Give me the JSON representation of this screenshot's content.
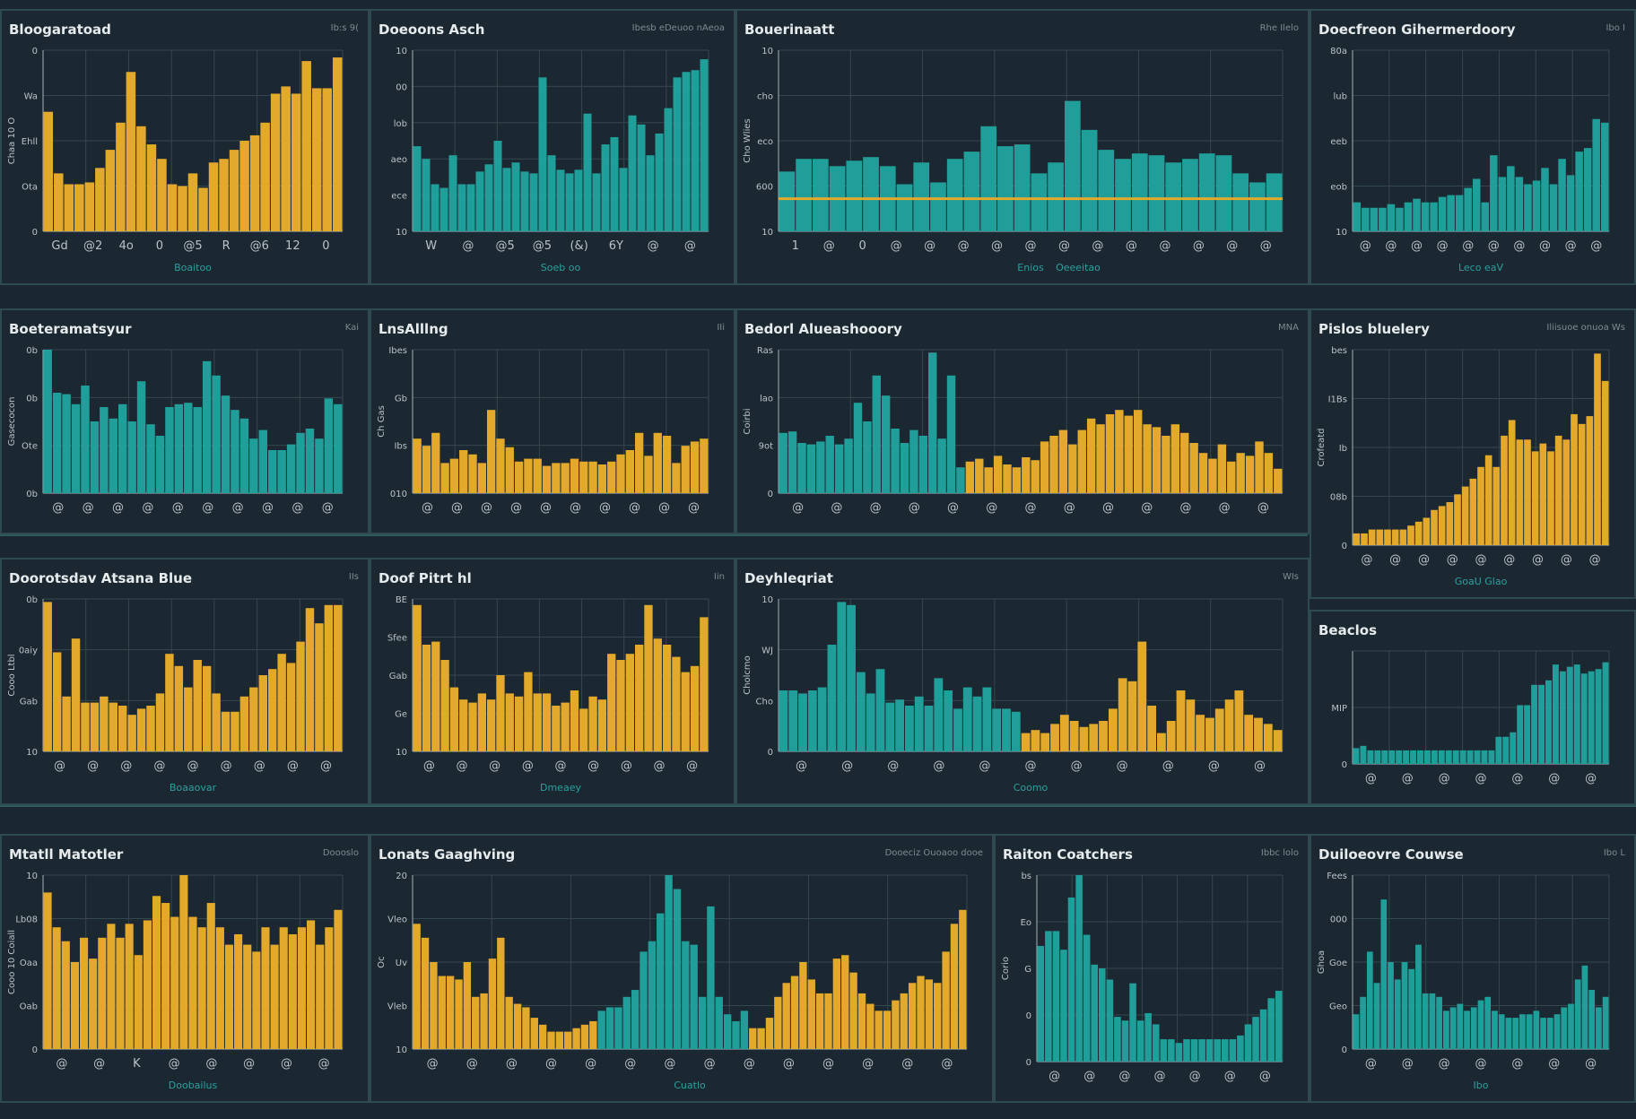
{
  "colors": {
    "gold": "#e3a92b",
    "teal": "#1f9e9a",
    "background": "#1c2831",
    "grid": "#33474e",
    "axis_title": "#2aa0a0"
  },
  "chart_data": [
    {
      "id": "p1",
      "title": "Bloogaratoad",
      "tag": "Ib:s 9(",
      "type": "bar",
      "color": "gold",
      "xticks": [
        "Gd",
        "@2",
        "4o",
        "0",
        "@5",
        "R",
        "@6",
        "12",
        "0"
      ],
      "yticks": [
        "0",
        "Wa",
        "Ehll",
        "Ota",
        "0"
      ],
      "xlabel": "Boaitoo",
      "ylabel": "Chaa 10 O",
      "ylim": [
        0,
        100
      ],
      "values": [
        66,
        32,
        26,
        26,
        27,
        35,
        45,
        60,
        88,
        58,
        48,
        40,
        26,
        25,
        32,
        24,
        38,
        40,
        45,
        50,
        53,
        60,
        76,
        80,
        76,
        94,
        79,
        79,
        96
      ]
    },
    {
      "id": "p2",
      "title": "Doeoons Asch",
      "tag": "Ibesb eDeuoo nAeoa",
      "type": "bar",
      "color": "teal",
      "xticks": [
        "W",
        "@",
        "@5",
        "@5",
        "(&)",
        "6Y",
        "@",
        "@"
      ],
      "yticks": [
        "10",
        "00",
        "lob",
        "aeo",
        "ece",
        "10"
      ],
      "xlabel": "Soeb oo",
      "ylim": [
        0,
        100
      ],
      "values": [
        47,
        40,
        26,
        24,
        42,
        26,
        26,
        33,
        37,
        50,
        35,
        38,
        33,
        32,
        85,
        42,
        34,
        32,
        34,
        65,
        32,
        48,
        52,
        35,
        64,
        59,
        42,
        54,
        68,
        85,
        88,
        89,
        95
      ]
    },
    {
      "id": "p3",
      "title": "Bouerinaatt",
      "tag": "Rhe Ilelo",
      "type": "bar",
      "color": "teal",
      "xticks": [
        "1",
        "@",
        "0",
        "@",
        "@",
        "@",
        "@",
        "@",
        "@",
        "@",
        "@",
        "@",
        "@",
        "@",
        "@"
      ],
      "yticks": [
        "10",
        "cho",
        "eco",
        "600",
        "10"
      ],
      "xlabel": "Enios",
      "xlabel2": "Oeeeitao",
      "ylabel": "Cho Wlies",
      "ylim": [
        0,
        100
      ],
      "line_value": 18,
      "values": [
        33,
        40,
        40,
        36,
        39,
        41,
        36,
        26,
        38,
        27,
        40,
        44,
        58,
        47,
        48,
        32,
        38,
        72,
        56,
        45,
        40,
        43,
        42,
        38,
        40,
        43,
        42,
        32,
        27,
        32
      ]
    },
    {
      "id": "p4",
      "title": "Doecfreon Gihermerdoory",
      "tag": "Ibo I",
      "type": "bar",
      "color": "teal",
      "xticks": [
        "@",
        "@",
        "@",
        "@",
        "@",
        "@",
        "@",
        "@",
        "@",
        "@"
      ],
      "yticks": [
        "80a",
        "lub",
        "eeb",
        "eob",
        "10"
      ],
      "xlabel": "Leco eaV",
      "ylim": [
        0,
        100
      ],
      "values": [
        16,
        13,
        13,
        13,
        15,
        13,
        16,
        18,
        16,
        16,
        19,
        20,
        20,
        24,
        29,
        16,
        42,
        30,
        36,
        30,
        26,
        28,
        35,
        26,
        40,
        31,
        44,
        46,
        62,
        60
      ]
    },
    {
      "id": "p5",
      "title": "Boeteramatsyur",
      "tag": "Kai",
      "type": "bar",
      "color": "teal",
      "xticks": [
        "@",
        "@",
        "@",
        "@",
        "@",
        "@",
        "@",
        "@",
        "@",
        "@"
      ],
      "yticks": [
        "0b",
        "0b",
        "Ote",
        "0b"
      ],
      "ylabel": "Gasecocon",
      "ylim": [
        0,
        100
      ],
      "values": [
        100,
        70,
        69,
        62,
        75,
        50,
        60,
        52,
        62,
        50,
        78,
        48,
        40,
        60,
        62,
        63,
        60,
        92,
        82,
        68,
        58,
        52,
        38,
        44,
        30,
        30,
        34,
        42,
        45,
        38,
        66,
        62
      ]
    },
    {
      "id": "p6",
      "title": "LnsAlllng",
      "tag": "IIi",
      "type": "bar",
      "color": "gold",
      "xticks": [
        "@",
        "@",
        "@",
        "@",
        "@",
        "@",
        "@",
        "@",
        "@",
        "@"
      ],
      "yticks": [
        "Ibes",
        "Gb",
        "Ibs",
        "010"
      ],
      "ylabel": "Ch Gas",
      "ylim": [
        0,
        100
      ],
      "values": [
        38,
        33,
        42,
        21,
        24,
        30,
        27,
        21,
        58,
        38,
        32,
        22,
        24,
        24,
        19,
        21,
        21,
        24,
        22,
        22,
        20,
        22,
        27,
        30,
        42,
        26,
        42,
        40,
        21,
        33,
        36,
        38
      ]
    },
    {
      "id": "p7",
      "title": "Bedorl Alueashooory",
      "tag": "MNA",
      "type": "bar",
      "color": "mixed",
      "xticks": [
        "@",
        "@",
        "@",
        "@",
        "@",
        "@",
        "@",
        "@",
        "@",
        "@",
        "@",
        "@",
        "@"
      ],
      "yticks": [
        "Ras",
        "lao",
        "9ot",
        "0"
      ],
      "ylabel": "Coirbi",
      "ylim": [
        0,
        100
      ],
      "values": [
        42,
        43,
        35,
        34,
        36,
        40,
        34,
        38,
        63,
        50,
        82,
        68,
        45,
        35,
        44,
        40,
        98,
        38,
        82,
        18,
        22,
        24,
        18,
        26,
        20,
        18,
        25,
        23,
        36,
        40,
        44,
        34,
        44,
        52,
        48,
        55,
        58,
        54,
        58,
        48,
        46,
        40,
        48,
        42,
        35,
        28,
        24,
        34,
        22,
        28,
        26,
        36,
        28,
        17
      ],
      "split_index": 20
    },
    {
      "id": "p8",
      "title": "Pislos bluelery",
      "tag": "Iliisuoe onuoa Ws",
      "type": "bar",
      "color": "gold",
      "xticks": [
        "@",
        "@",
        "@",
        "@",
        "@",
        "@",
        "@",
        "@",
        "@"
      ],
      "yticks": [
        "bes",
        "I1Bs",
        "Ib",
        "08b",
        "0"
      ],
      "xlabel": "GoaU Glao",
      "ylabel": "Crofeatd",
      "ylim": [
        0,
        100
      ],
      "values": [
        6,
        6,
        8,
        8,
        8,
        8,
        8,
        10,
        12,
        14,
        18,
        20,
        22,
        26,
        30,
        34,
        40,
        46,
        40,
        56,
        64,
        54,
        54,
        48,
        52,
        48,
        56,
        54,
        67,
        62,
        66,
        98,
        84
      ]
    },
    {
      "id": "p9",
      "title": "Doorotsdav Atsana Blue",
      "tag": "IIs",
      "type": "bar",
      "color": "gold",
      "xticks": [
        "@",
        "@",
        "@",
        "@",
        "@",
        "@",
        "@",
        "@",
        "@"
      ],
      "yticks": [
        "0b",
        "0aiy",
        "Gab",
        "10"
      ],
      "xlabel": "Boaaovar",
      "ylabel": "Cooo Ltbl",
      "ylim": [
        0,
        100
      ],
      "values": [
        98,
        65,
        36,
        74,
        32,
        32,
        36,
        32,
        30,
        24,
        28,
        30,
        38,
        64,
        56,
        42,
        60,
        56,
        38,
        26,
        26,
        36,
        42,
        50,
        54,
        64,
        58,
        72,
        94,
        84,
        96,
        96
      ]
    },
    {
      "id": "p10",
      "title": "Doof Pitrt hl",
      "tag": "Iin",
      "type": "bar",
      "color": "gold",
      "xticks": [
        "@",
        "@",
        "@",
        "@",
        "@",
        "@",
        "@",
        "@",
        "@"
      ],
      "yticks": [
        "BE",
        "Sfee",
        "Gab",
        "Ge",
        "10"
      ],
      "xlabel": "Dmeaey",
      "ylim": [
        0,
        100
      ],
      "values": [
        96,
        70,
        72,
        60,
        42,
        34,
        32,
        38,
        34,
        50,
        38,
        36,
        52,
        38,
        38,
        30,
        32,
        40,
        28,
        36,
        34,
        64,
        60,
        64,
        70,
        96,
        74,
        70,
        62,
        52,
        56,
        88
      ]
    },
    {
      "id": "p11",
      "title": "Deyhleqriat",
      "tag": "WIs",
      "type": "bar",
      "color": "mixed",
      "xticks": [
        "@",
        "@",
        "@",
        "@",
        "@",
        "@",
        "@",
        "@",
        "@",
        "@",
        "@"
      ],
      "yticks": [
        "10",
        "WJ",
        "Cho",
        "0"
      ],
      "xlabel": "Coomo",
      "ylabel": "Cholcmo",
      "ylim": [
        0,
        100
      ],
      "values": [
        40,
        40,
        38,
        40,
        42,
        70,
        98,
        96,
        52,
        38,
        54,
        32,
        34,
        30,
        36,
        30,
        48,
        40,
        28,
        42,
        36,
        42,
        28,
        28,
        26,
        12,
        14,
        12,
        18,
        24,
        20,
        16,
        18,
        20,
        28,
        48,
        46,
        72,
        30,
        12,
        20,
        40,
        34,
        24,
        22,
        28,
        34,
        40,
        24,
        22,
        18,
        14
      ],
      "split_index": 25
    },
    {
      "id": "p12",
      "title": "Beaclos",
      "tag": "",
      "type": "bar",
      "color": "teal",
      "xticks": [
        "@",
        "@",
        "@",
        "@",
        "@",
        "@",
        "@"
      ],
      "yticks": [
        "",
        "MIP",
        "0"
      ],
      "ylim": [
        0,
        100
      ],
      "values": [
        14,
        16,
        12,
        12,
        12,
        12,
        12,
        12,
        12,
        12,
        12,
        12,
        12,
        12,
        12,
        12,
        12,
        12,
        12,
        12,
        24,
        24,
        28,
        52,
        52,
        70,
        70,
        74,
        88,
        82,
        86,
        88,
        80,
        82,
        84,
        90
      ]
    },
    {
      "id": "p13",
      "title": "Mtatll Matotler",
      "tag": "Doooslo",
      "type": "bar",
      "color": "gold",
      "xticks": [
        "@",
        "@",
        "K",
        "@",
        "@",
        "@",
        "@",
        "@"
      ],
      "yticks": [
        "10",
        "Lb08",
        "Oaa",
        "Oab",
        "0"
      ],
      "xlabel": "Doobailus",
      "ylabel": "Cooo 10 Coiall",
      "ylim": [
        0,
        100
      ],
      "values": [
        90,
        70,
        62,
        50,
        64,
        52,
        64,
        72,
        64,
        72,
        54,
        74,
        88,
        84,
        76,
        100,
        76,
        70,
        84,
        70,
        60,
        66,
        60,
        56,
        70,
        60,
        70,
        66,
        70,
        74,
        60,
        70,
        80
      ]
    },
    {
      "id": "p14",
      "title": "Lonats Gaaghving",
      "tag": "Dooeciz Ouoaoo dooe",
      "type": "bar",
      "color": "mixed",
      "xticks": [
        "@",
        "@",
        "@",
        "@",
        "@",
        "@",
        "@",
        "@",
        "@",
        "@",
        "@",
        "@",
        "@",
        "@"
      ],
      "yticks": [
        "20",
        "Vleo",
        "Uv",
        "Vleb",
        "10"
      ],
      "xlabel": "Cuatlo",
      "ylabel": "Oc",
      "ylim": [
        0,
        100
      ],
      "values": [
        72,
        64,
        50,
        42,
        42,
        40,
        50,
        30,
        32,
        52,
        64,
        30,
        26,
        24,
        18,
        14,
        10,
        10,
        10,
        12,
        14,
        16,
        22,
        24,
        24,
        30,
        34,
        56,
        62,
        78,
        100,
        92,
        62,
        60,
        30,
        82,
        30,
        20,
        16,
        22,
        12,
        12,
        18,
        30,
        38,
        42,
        50,
        40,
        32,
        32,
        52,
        54,
        44,
        32,
        26,
        22,
        22,
        28,
        32,
        38,
        42,
        40,
        38,
        56,
        72,
        80
      ],
      "split_index": 22
    },
    {
      "id": "p15",
      "title": "Raiton Coatchers",
      "tag": "Ibbc lolo",
      "type": "bar",
      "color": "teal",
      "xticks": [
        "@",
        "@",
        "@",
        "@",
        "@",
        "@",
        "@"
      ],
      "yticks": [
        "bs",
        "Eo",
        "G",
        "0",
        "0"
      ],
      "ylabel": "Corio",
      "ylim": [
        0,
        100
      ],
      "values": [
        62,
        70,
        70,
        60,
        88,
        100,
        68,
        52,
        50,
        44,
        24,
        22,
        42,
        22,
        26,
        20,
        12,
        12,
        10,
        12,
        12,
        12,
        12,
        12,
        12,
        12,
        14,
        20,
        24,
        28,
        34,
        38
      ]
    },
    {
      "id": "p16",
      "title": "Duiloeovre Couwse",
      "tag": "Ibo L",
      "type": "bar",
      "color": "teal",
      "xticks": [
        "@",
        "@",
        "@",
        "@",
        "@",
        "@",
        "@"
      ],
      "yticks": [
        "Fees",
        "000",
        "Goe",
        "Geo",
        "0"
      ],
      "xlabel": "Ibo",
      "ylabel": "Ghoa",
      "ylim": [
        0,
        100
      ],
      "values": [
        20,
        30,
        56,
        38,
        86,
        50,
        40,
        50,
        46,
        60,
        32,
        32,
        30,
        22,
        24,
        26,
        22,
        24,
        28,
        30,
        22,
        20,
        18,
        18,
        20,
        20,
        22,
        18,
        18,
        20,
        24,
        26,
        40,
        48,
        34,
        24,
        30
      ]
    }
  ]
}
